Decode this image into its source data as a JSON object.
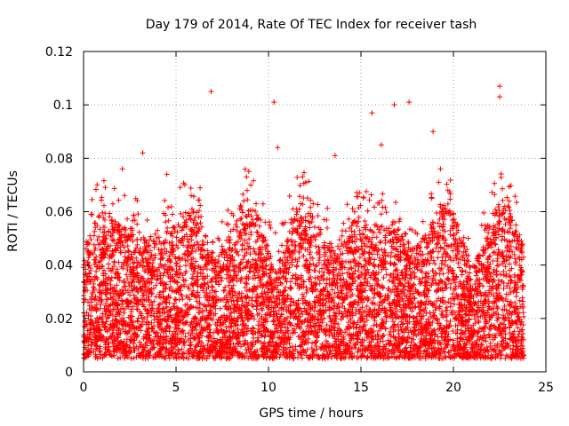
{
  "chart_data": {
    "type": "scatter",
    "title": "Day 179 of 2014, Rate Of TEC Index for receiver tash",
    "xlabel": "GPS time / hours",
    "ylabel": "ROTI / TECUs",
    "xlim": [
      0,
      25
    ],
    "ylim": [
      0,
      0.12
    ],
    "xticks": [
      "0",
      "5",
      "10",
      "15",
      "20",
      "25"
    ],
    "yticks": [
      "0",
      "0.02",
      "0.04",
      "0.06",
      "0.08",
      "0.1",
      "0.12"
    ],
    "grid": true,
    "marker": "plus",
    "color": "#ff0000",
    "series": [
      {
        "name": "ROTI",
        "data_range_hours": [
          0,
          23.8
        ],
        "typical_band": [
          0.005,
          0.06
        ],
        "notable_points": [
          [
            6.9,
            0.105
          ],
          [
            10.3,
            0.101
          ],
          [
            3.2,
            0.082
          ],
          [
            10.5,
            0.084
          ],
          [
            15.6,
            0.097
          ],
          [
            16.8,
            0.1
          ],
          [
            17.6,
            0.101
          ],
          [
            18.9,
            0.09
          ],
          [
            22.5,
            0.107
          ],
          [
            22.5,
            0.103
          ],
          [
            2.1,
            0.076
          ],
          [
            4.5,
            0.074
          ],
          [
            13.6,
            0.081
          ],
          [
            16.1,
            0.085
          ],
          [
            19.3,
            0.076
          ]
        ]
      }
    ]
  }
}
